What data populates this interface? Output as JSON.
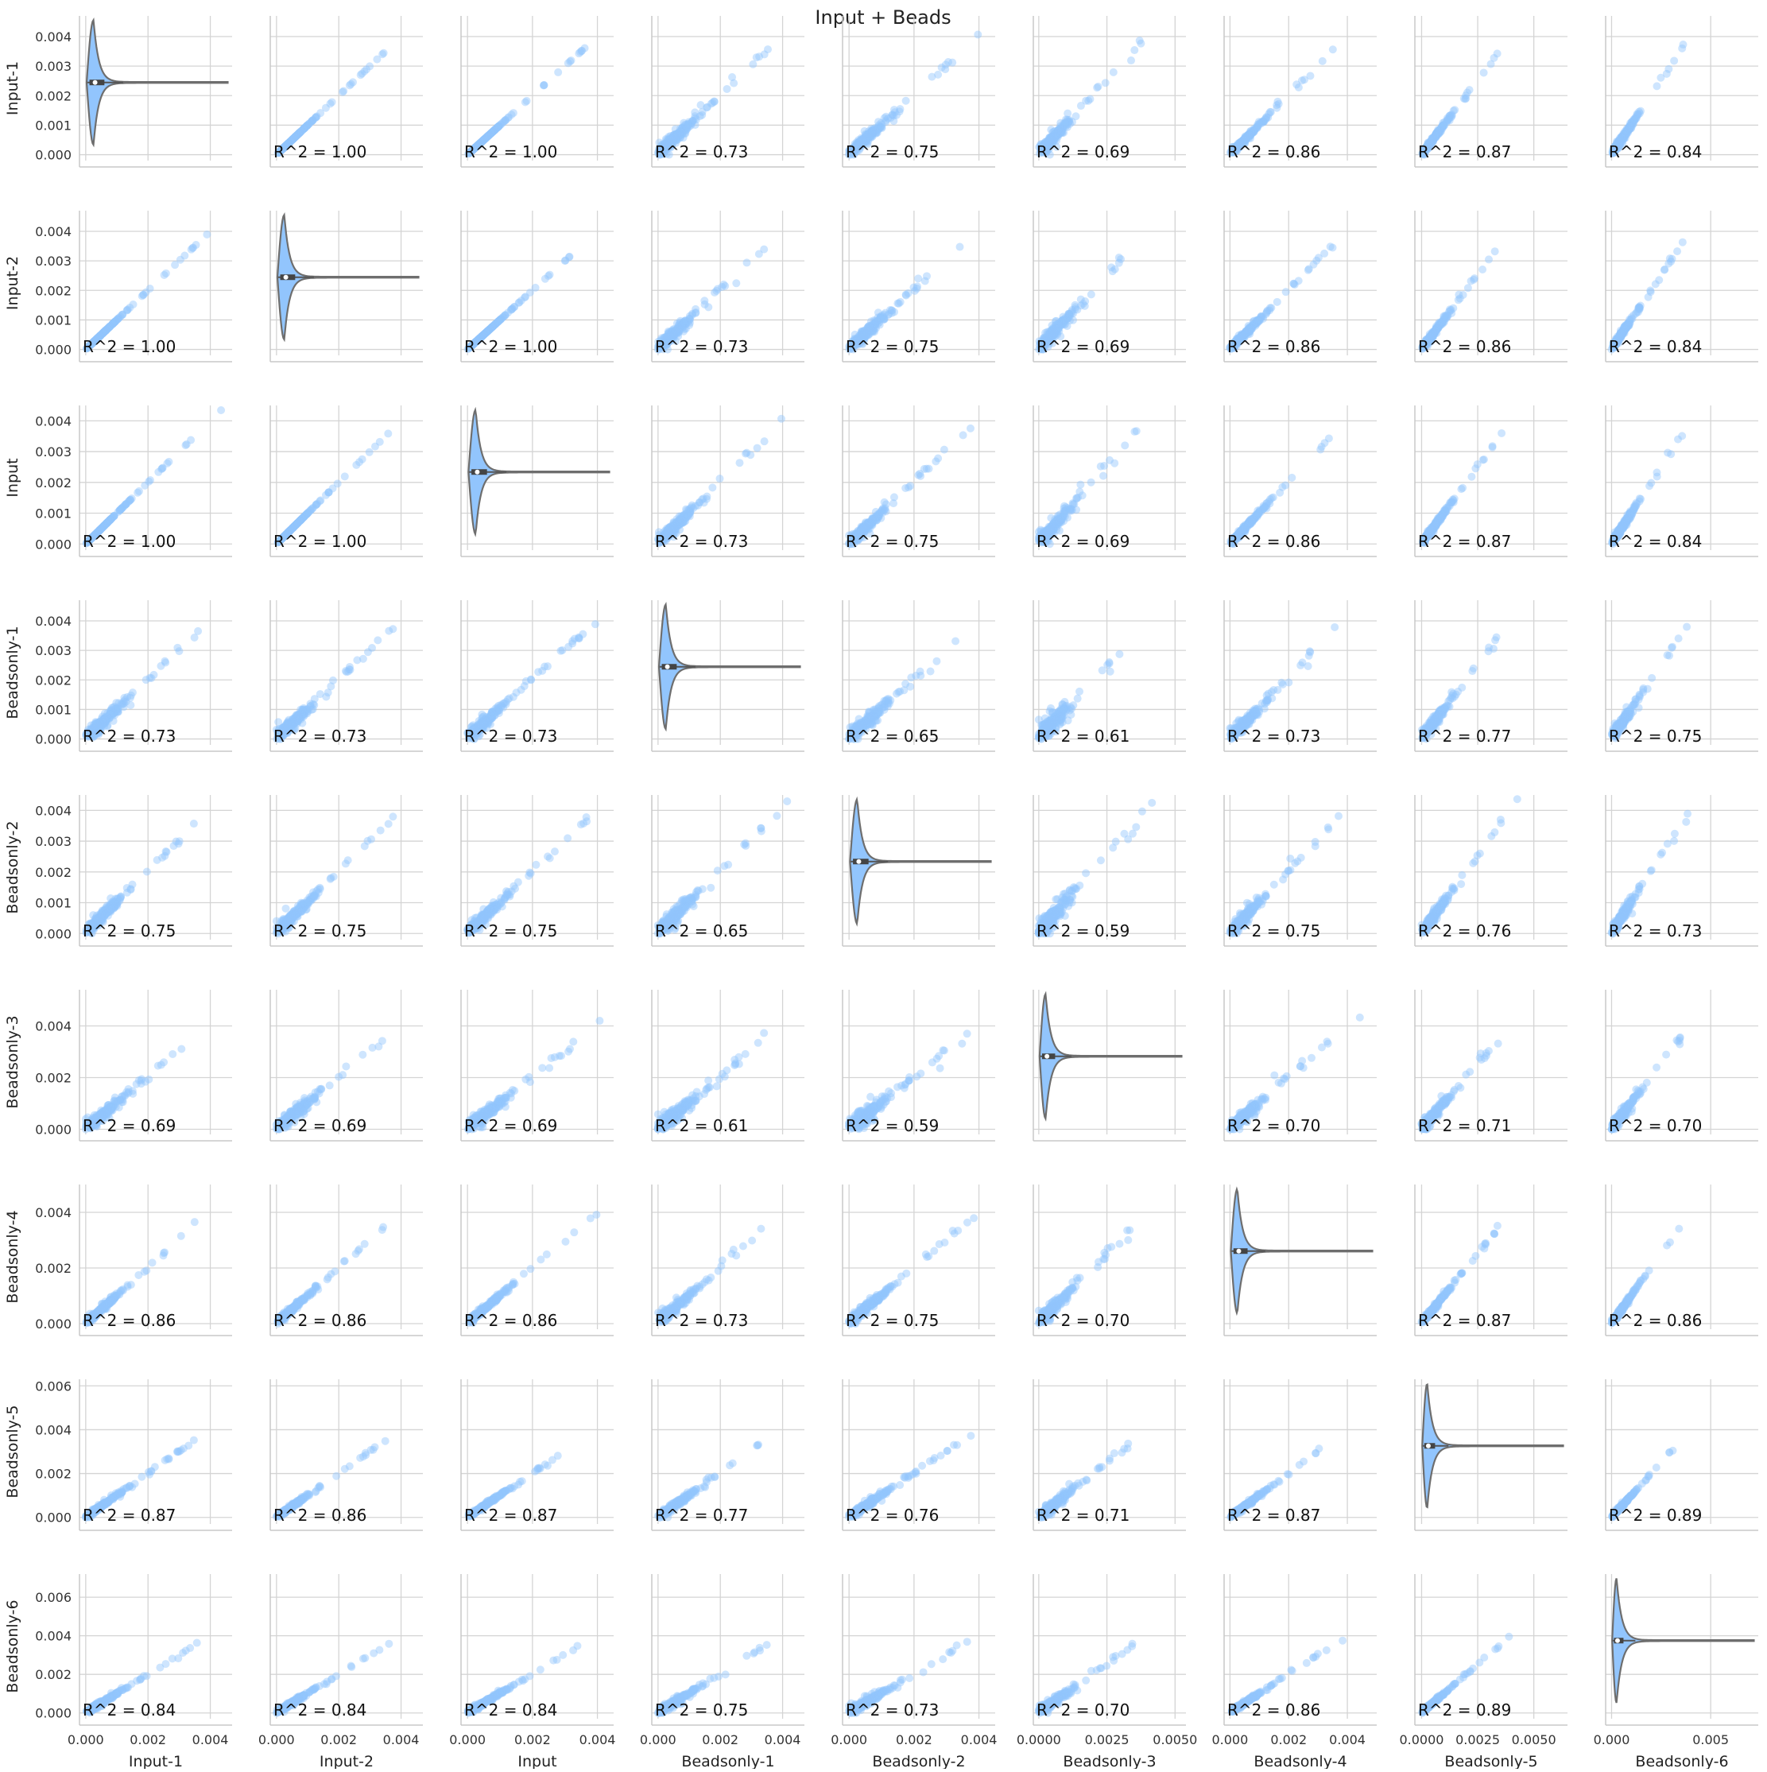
{
  "chart_data": {
    "type": "pairplot",
    "title": "Input + Beads",
    "variables": [
      "Input-1",
      "Input-2",
      "Input",
      "Beadsonly-1",
      "Beadsonly-2",
      "Beadsonly-3",
      "Beadsonly-4",
      "Beadsonly-5",
      "Beadsonly-6"
    ],
    "diagonal_type": "violin",
    "offdiagonal_type": "scatter",
    "point_color": "#92c5fd",
    "violin_color": "#92c5fd",
    "violin_edge_color": "#6e6e6e",
    "grid": true,
    "x_ranges": [
      [
        -0.0002,
        0.0047
      ],
      [
        -0.0002,
        0.0047
      ],
      [
        -0.0002,
        0.0045
      ],
      [
        -0.0002,
        0.0047
      ],
      [
        -0.0002,
        0.0045
      ],
      [
        -0.0002,
        0.0054
      ],
      [
        -0.0002,
        0.005
      ],
      [
        -0.0003,
        0.0065
      ],
      [
        -0.0003,
        0.0074
      ]
    ],
    "x_ticks": [
      [
        0,
        0.002,
        0.004
      ],
      [
        0,
        0.002,
        0.004
      ],
      [
        0,
        0.002,
        0.004
      ],
      [
        0,
        0.002,
        0.004
      ],
      [
        0,
        0.002,
        0.004
      ],
      [
        0,
        0.0025,
        0.005
      ],
      [
        0,
        0.002,
        0.004
      ],
      [
        0,
        0.0025,
        0.005
      ],
      [
        0,
        0.005
      ]
    ],
    "x_tick_labels": [
      [
        "0.000",
        "0.002",
        "0.004"
      ],
      [
        "0.000",
        "0.002",
        "0.004"
      ],
      [
        "0.000",
        "0.002",
        "0.004"
      ],
      [
        "0.000",
        "0.002",
        "0.004"
      ],
      [
        "0.000",
        "0.002",
        "0.004"
      ],
      [
        "0.0000",
        "0.0025",
        "0.0050"
      ],
      [
        "0.000",
        "0.002",
        "0.004"
      ],
      [
        "0.0000",
        "0.0025",
        "0.0050"
      ],
      [
        "0.000",
        "0.005"
      ]
    ],
    "y_ranges": [
      [
        -0.0002,
        0.0047
      ],
      [
        -0.0002,
        0.0047
      ],
      [
        -0.0002,
        0.0045
      ],
      [
        -0.0002,
        0.0047
      ],
      [
        -0.0002,
        0.0045
      ],
      [
        -0.0002,
        0.0054
      ],
      [
        -0.0002,
        0.005
      ],
      [
        -0.0003,
        0.0063
      ],
      [
        -0.0003,
        0.0072
      ]
    ],
    "y_ticks": [
      [
        0,
        0.001,
        0.002,
        0.003,
        0.004
      ],
      [
        0,
        0.001,
        0.002,
        0.003,
        0.004
      ],
      [
        0,
        0.001,
        0.002,
        0.003,
        0.004
      ],
      [
        0,
        0.001,
        0.002,
        0.003,
        0.004
      ],
      [
        0,
        0.001,
        0.002,
        0.003,
        0.004
      ],
      [
        0,
        0.002,
        0.004
      ],
      [
        0,
        0.002,
        0.004
      ],
      [
        0,
        0.002,
        0.004,
        0.006
      ],
      [
        0,
        0.002,
        0.004,
        0.006
      ]
    ],
    "y_tick_labels": [
      [
        "0.000",
        "0.001",
        "0.002",
        "0.003",
        "0.004"
      ],
      [
        "0.000",
        "0.001",
        "0.002",
        "0.003",
        "0.004"
      ],
      [
        "0.000",
        "0.001",
        "0.002",
        "0.003",
        "0.004"
      ],
      [
        "0.000",
        "0.001",
        "0.002",
        "0.003",
        "0.004"
      ],
      [
        "0.000",
        "0.001",
        "0.002",
        "0.003",
        "0.004"
      ],
      [
        "0.000",
        "0.002",
        "0.004"
      ],
      [
        "0.000",
        "0.002",
        "0.004"
      ],
      [
        "0.000",
        "0.002",
        "0.004",
        "0.006"
      ],
      [
        "0.000",
        "0.002",
        "0.004",
        "0.006"
      ]
    ],
    "r_squared": [
      [
        null,
        "1.00",
        "1.00",
        "0.73",
        "0.75",
        "0.69",
        "0.86",
        "0.87",
        "0.84"
      ],
      [
        "1.00",
        null,
        "1.00",
        "0.73",
        "0.75",
        "0.69",
        "0.86",
        "0.86",
        "0.84"
      ],
      [
        "1.00",
        "1.00",
        null,
        "0.73",
        "0.75",
        "0.69",
        "0.86",
        "0.87",
        "0.84"
      ],
      [
        "0.73",
        "0.73",
        "0.73",
        null,
        "0.65",
        "0.61",
        "0.73",
        "0.77",
        "0.75"
      ],
      [
        "0.75",
        "0.75",
        "0.75",
        "0.65",
        null,
        "0.59",
        "0.75",
        "0.76",
        "0.73"
      ],
      [
        "0.69",
        "0.69",
        "0.69",
        "0.61",
        "0.59",
        null,
        "0.70",
        "0.71",
        "0.70"
      ],
      [
        "0.86",
        "0.86",
        "0.86",
        "0.73",
        "0.75",
        "0.70",
        null,
        "0.87",
        "0.86"
      ],
      [
        "0.87",
        "0.86",
        "0.87",
        "0.77",
        "0.76",
        "0.71",
        "0.87",
        null,
        "0.89"
      ],
      [
        "0.84",
        "0.84",
        "0.84",
        "0.75",
        "0.73",
        "0.70",
        "0.86",
        "0.89",
        null
      ]
    ],
    "r_label_prefix": "R^2 = "
  }
}
